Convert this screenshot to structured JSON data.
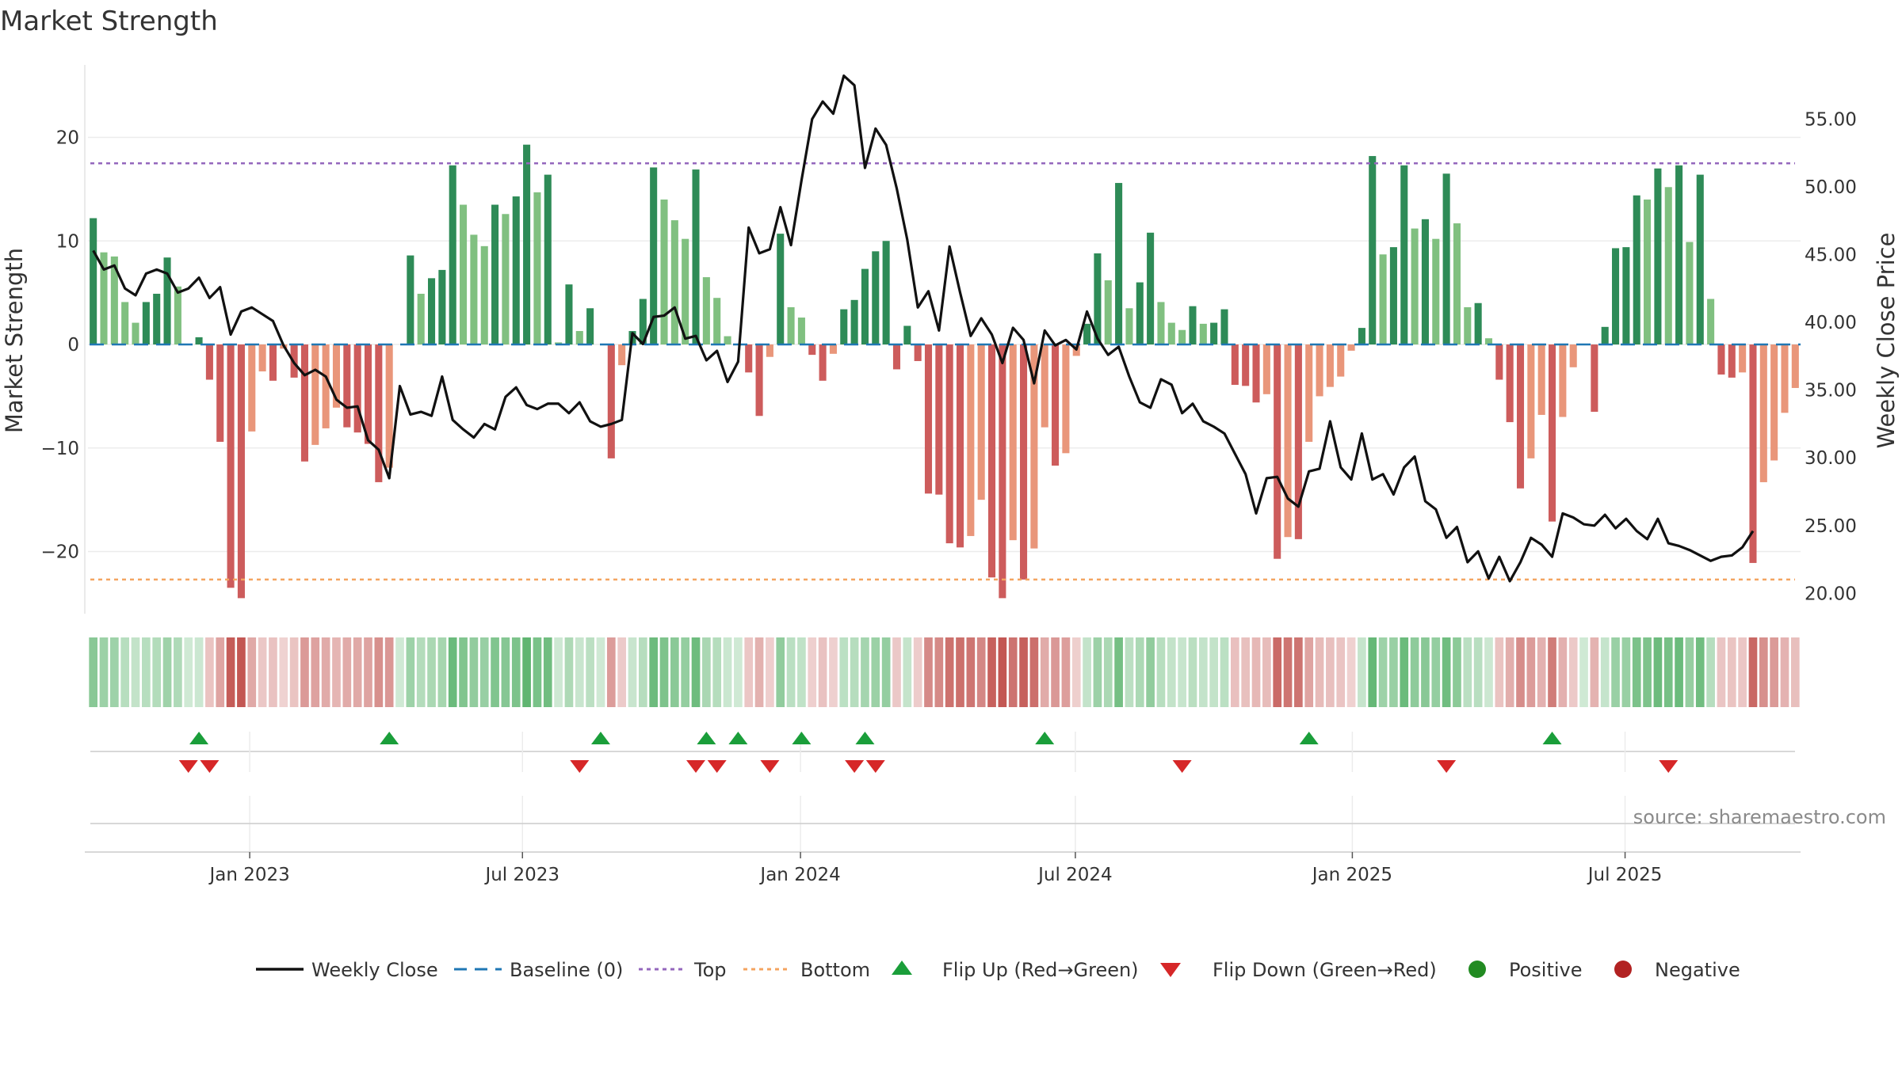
{
  "chart_data": {
    "type": "bar",
    "title": "Market Strength",
    "y_left_label": "Market Strength",
    "y_right_label": "Weekly Close Price",
    "y_left_range": [
      -26,
      27
    ],
    "y_right_range": [
      18.5,
      59.0
    ],
    "y_left_ticks": [
      20,
      10,
      0,
      -10,
      -20
    ],
    "y_left_tick_labels": [
      "20",
      "10",
      "0",
      "−10",
      "−20"
    ],
    "y_right_ticks": [
      55,
      50,
      45,
      40,
      35,
      30,
      25,
      20
    ],
    "y_right_tick_labels": [
      "55.00",
      "50.00",
      "45.00",
      "40.00",
      "35.00",
      "30.00",
      "25.00",
      "20.00"
    ],
    "x_tick_labels": [
      "Jan 2023",
      "Jul 2023",
      "Jan 2024",
      "Jul 2024",
      "Jan 2025",
      "Jul 2025"
    ],
    "x_tick_weeks": [
      15.3,
      41.1,
      67.4,
      93.4,
      119.6,
      145.4
    ],
    "top_threshold": 17.5,
    "bottom_threshold": -22.7,
    "baseline": 0,
    "strength": [
      12.2,
      8.9,
      8.5,
      4.1,
      2.1,
      4.1,
      4.9,
      8.4,
      5.6,
      0,
      0.7,
      -3.4,
      -9.4,
      -23.5,
      -24.5,
      -8.4,
      -2.6,
      -3.5,
      -0.4,
      -3.2,
      -11.3,
      -9.7,
      -8.1,
      -6.1,
      -8.0,
      -8.5,
      -9.6,
      -13.3,
      -11.9,
      0,
      8.6,
      4.9,
      6.4,
      7.2,
      17.3,
      13.5,
      10.6,
      9.5,
      13.5,
      12.6,
      14.3,
      19.3,
      14.7,
      16.4,
      0.2,
      5.8,
      1.3,
      3.5,
      0,
      -11.0,
      -2.0,
      1.3,
      4.4,
      17.1,
      14.0,
      12.0,
      10.2,
      16.9,
      6.5,
      4.5,
      0.8,
      0,
      -2.7,
      -6.9,
      -1.2,
      10.7,
      3.6,
      2.6,
      -1.0,
      -3.5,
      -0.9,
      3.4,
      4.3,
      7.3,
      9.0,
      10.0,
      -2.4,
      1.8,
      -1.6,
      -14.4,
      -14.5,
      -19.2,
      -19.6,
      -18.5,
      -15.0,
      -22.5,
      -24.5,
      -18.9,
      -22.7,
      -19.7,
      -8.0,
      -11.7,
      -10.5,
      -1.1,
      2.0,
      8.8,
      6.2,
      15.6,
      3.5,
      6.0,
      10.8,
      4.1,
      2.1,
      1.4,
      3.7,
      2.0,
      2.1,
      3.4,
      -3.9,
      -4.0,
      -5.6,
      -4.8,
      -20.7,
      -18.6,
      -18.8,
      -9.4,
      -5.0,
      -4.1,
      -3.1,
      -0.6,
      1.6,
      18.2,
      8.7,
      9.4,
      17.3,
      11.2,
      12.1,
      10.2,
      16.5,
      11.7,
      3.6,
      4.0,
      0.6,
      -3.4,
      -7.5,
      -13.9,
      -11.0,
      -6.8,
      -17.1,
      -7.0,
      -2.2,
      0,
      -6.5,
      1.7,
      9.3,
      9.4,
      14.4,
      14.0,
      17.0,
      15.2,
      17.3,
      9.9,
      16.4,
      4.4,
      -2.9,
      -3.2,
      -2.7,
      -21.1,
      -13.3,
      -11.2,
      -6.6,
      -4.2
    ],
    "weekly_close": [
      45.3,
      43.9,
      44.2,
      42.5,
      42.0,
      43.6,
      43.9,
      43.6,
      42.2,
      42.5,
      43.3,
      41.8,
      42.6,
      39.1,
      40.8,
      41.1,
      40.6,
      40.1,
      38.3,
      37.0,
      36.1,
      36.5,
      36.0,
      34.3,
      33.7,
      33.8,
      31.3,
      30.6,
      28.5,
      35.3,
      33.2,
      33.4,
      33.1,
      36.0,
      32.8,
      32.1,
      31.5,
      32.5,
      32.1,
      34.5,
      35.2,
      33.9,
      33.6,
      34.0,
      34.0,
      33.3,
      34.1,
      32.7,
      32.3,
      32.5,
      32.8,
      39.2,
      38.4,
      40.4,
      40.5,
      41.1,
      38.8,
      39.0,
      37.2,
      37.9,
      35.6,
      37.1,
      47.0,
      45.1,
      45.4,
      48.5,
      45.7,
      50.5,
      55.0,
      56.3,
      55.4,
      58.2,
      57.5,
      51.4,
      54.3,
      53.1,
      49.9,
      46.1,
      41.1,
      42.3,
      39.4,
      45.6,
      42.2,
      39.0,
      40.3,
      39.1,
      37.0,
      39.6,
      38.7,
      35.5,
      39.4,
      38.3,
      38.7,
      38.0,
      40.8,
      38.8,
      37.6,
      38.2,
      36.0,
      34.1,
      33.7,
      35.8,
      35.4,
      33.3,
      34.0,
      32.7,
      32.3,
      31.8,
      30.3,
      28.8,
      25.9,
      28.5,
      28.6,
      27.0,
      26.4,
      29.0,
      29.2,
      32.7,
      29.3,
      28.4,
      31.8,
      28.4,
      28.8,
      27.3,
      29.3,
      30.1,
      26.8,
      26.2,
      24.1,
      24.9,
      22.3,
      23.1,
      21.1,
      22.7,
      20.9,
      22.3,
      24.1,
      23.6,
      22.7,
      25.9,
      25.6,
      25.1,
      25.0,
      25.8,
      24.8,
      25.5,
      24.6,
      24.0,
      25.5,
      23.7,
      23.5,
      23.2,
      22.8,
      22.4,
      22.7,
      22.8,
      23.4,
      24.6
    ],
    "flip_up_weeks": [
      10,
      28,
      48,
      58,
      61,
      67,
      73,
      90,
      115,
      138
    ],
    "flip_down_weeks": [
      9,
      11,
      46,
      57,
      59,
      64,
      72,
      74,
      103,
      128,
      149
    ],
    "legend": [
      "Weekly Close",
      "Baseline (0)",
      "Top",
      "Bottom",
      "Flip Up (Red→Green)",
      "Flip Down (Green→Red)",
      "Positive",
      "Negative"
    ],
    "source": "source: sharemaestro.com",
    "colors": {
      "pos_strong": "#2e8b57",
      "pos_weak": "#80c080",
      "neg_strong": "#cd5c5c",
      "neg_weak": "#e9967a",
      "close": "#111111",
      "baseline": "#1f77b4",
      "top": "#9467bd",
      "bottom": "#f4a460",
      "flip_up": "#1a9e3a",
      "flip_down": "#d62728",
      "positive": "#228b22",
      "negative": "#b22222"
    }
  }
}
